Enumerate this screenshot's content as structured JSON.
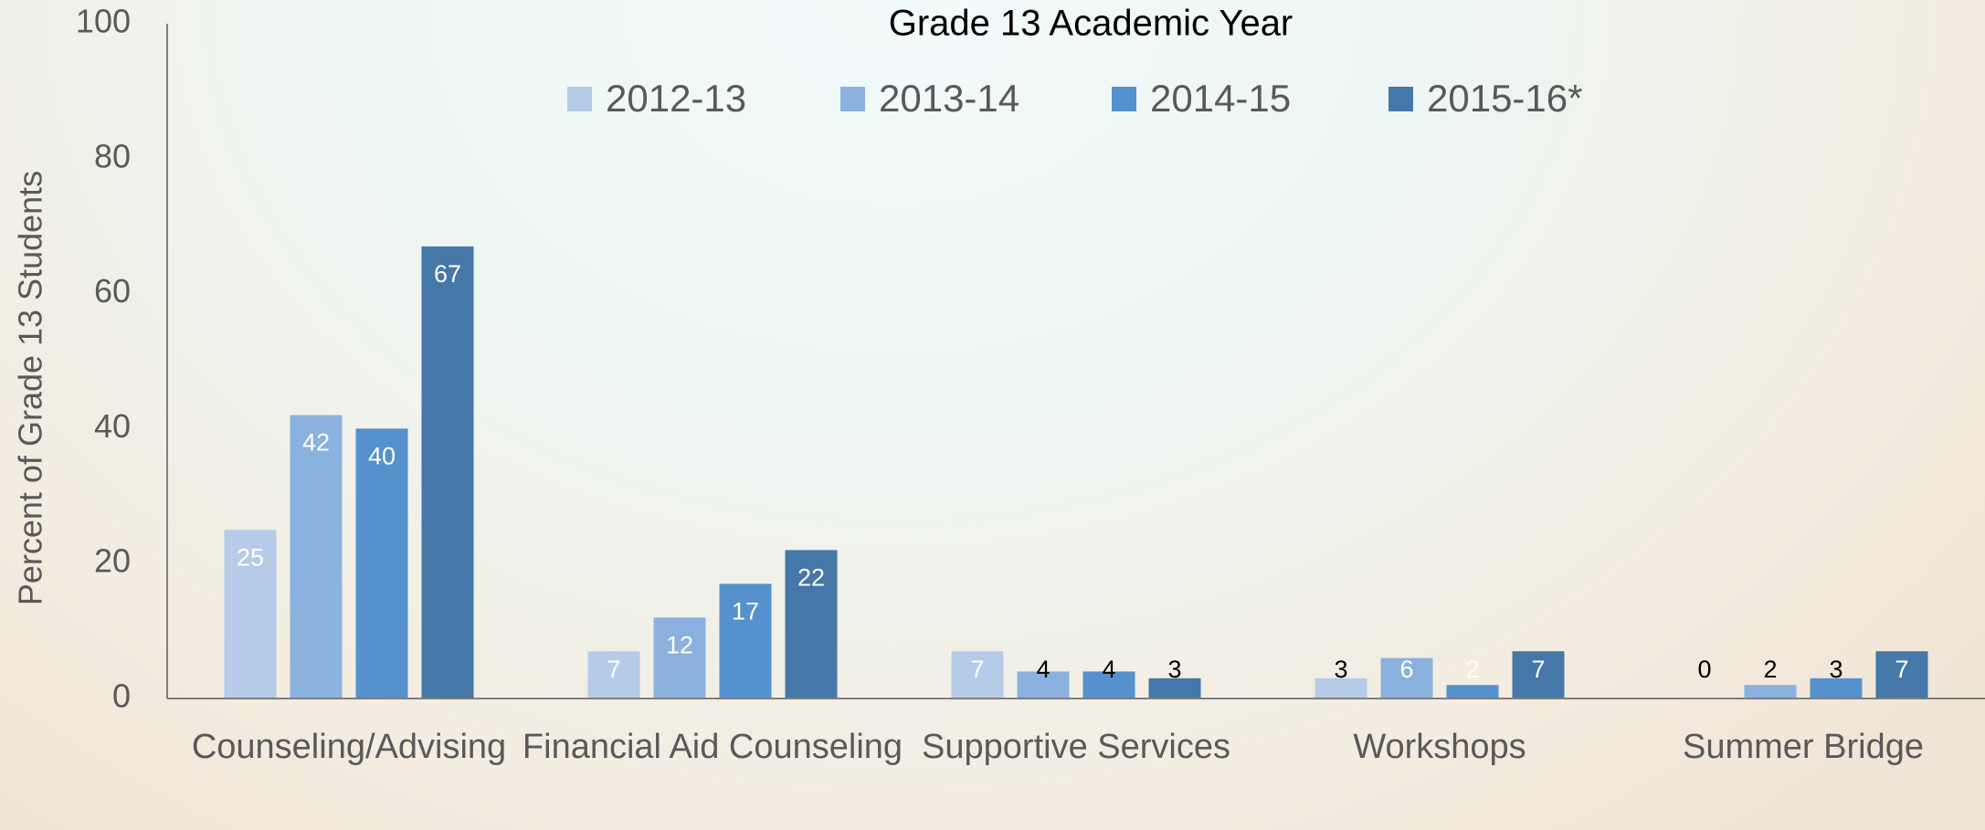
{
  "chart_data": {
    "type": "bar",
    "title": "Grade 13 Academic Year",
    "y_label": "Percent of Grade 13 Students",
    "categories": [
      "Counseling/Advising",
      "Financial Aid Counseling",
      "Supportive Services",
      "Workshops",
      "Summer Bridge"
    ],
    "series": [
      {
        "name": "2012-13",
        "color": "#b6cbe8",
        "values": [
          25,
          7,
          7,
          3,
          0
        ],
        "label_colors": [
          "#ffffff",
          "#ffffff",
          "#ffffff",
          "#000000",
          "#000000"
        ]
      },
      {
        "name": "2013-14",
        "color": "#8bb1df",
        "values": [
          42,
          12,
          4,
          6,
          2
        ],
        "label_colors": [
          "#ffffff",
          "#ffffff",
          "#000000",
          "#ffffff",
          "#000000"
        ]
      },
      {
        "name": "2014-15",
        "color": "#5591cc",
        "values": [
          40,
          17,
          4,
          2,
          3
        ],
        "label_colors": [
          "#ffffff",
          "#ffffff",
          "#000000",
          "#ffffff",
          "#000000"
        ]
      },
      {
        "name": "2015-16*",
        "color": "#4577a8",
        "values": [
          67,
          22,
          3,
          7,
          7
        ],
        "label_colors": [
          "#ffffff",
          "#ffffff",
          "#000000",
          "#ffffff",
          "#ffffff"
        ]
      }
    ],
    "ylim": [
      0,
      100
    ],
    "yticks": [
      0,
      20,
      40,
      60,
      80,
      100
    ],
    "grid": false,
    "legend": "top"
  }
}
